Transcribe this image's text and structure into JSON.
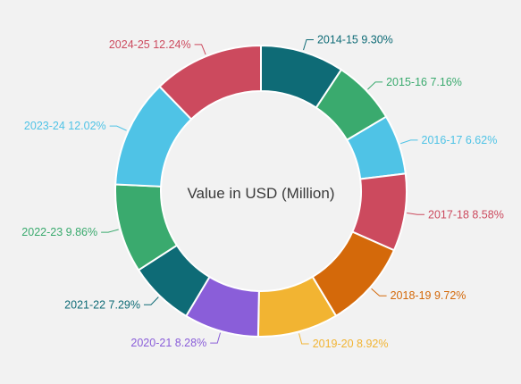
{
  "chart_data": {
    "type": "pie",
    "variant": "donut",
    "center_label": "Value in USD (Million)",
    "slices": [
      {
        "label": "2014-15",
        "value": 9.3,
        "display": "9.30%",
        "color": "#0e6b76"
      },
      {
        "label": "2015-16",
        "value": 7.16,
        "display": "7.16%",
        "color": "#3aaa6e"
      },
      {
        "label": "2016-17",
        "value": 6.62,
        "display": "6.62%",
        "color": "#4fc3e6"
      },
      {
        "label": "2017-18",
        "value": 8.58,
        "display": "8.58%",
        "color": "#cc4a5e"
      },
      {
        "label": "2018-19",
        "value": 9.72,
        "display": "9.72%",
        "color": "#d4690a"
      },
      {
        "label": "2019-20",
        "value": 8.92,
        "display": "8.92%",
        "color": "#f2b432"
      },
      {
        "label": "2020-21",
        "value": 8.28,
        "display": "8.28%",
        "color": "#8a5ed9"
      },
      {
        "label": "2021-22",
        "value": 7.29,
        "display": "7.29%",
        "color": "#0e6b76"
      },
      {
        "label": "2022-23",
        "value": 9.86,
        "display": "9.86%",
        "color": "#3aaa6e"
      },
      {
        "label": "2023-24",
        "value": 12.02,
        "display": "12.02%",
        "color": "#4fc3e6"
      },
      {
        "label": "2024-25",
        "value": 12.24,
        "display": "12.24%",
        "color": "#cc4a5e"
      }
    ]
  }
}
